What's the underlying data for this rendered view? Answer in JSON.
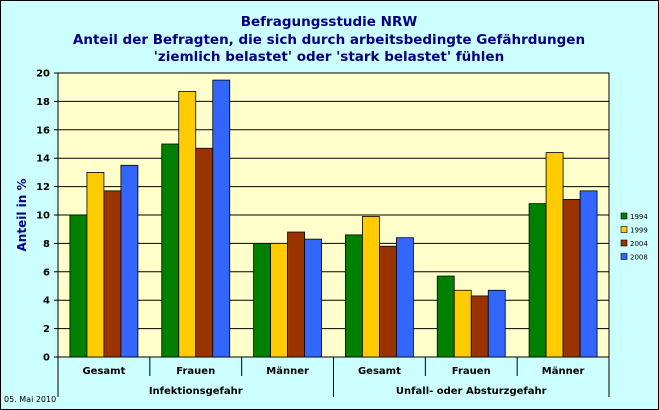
{
  "title_lines": [
    "Befragungsstudie NRW",
    "Anteil der Befragten, die sich durch arbeitsbedingte Gefährdungen",
    "'ziemlich belastet' oder 'stark belastet' fühlen"
  ],
  "footer": "05. Mai 2010",
  "colors": {
    "background": "#ccffff",
    "plot_background": "#ffffcc",
    "title": "#000080",
    "series": [
      "#008000",
      "#ffcc00",
      "#993300",
      "#3366ff"
    ]
  },
  "chart_data": {
    "type": "bar",
    "ylabel": "Anteil in %",
    "ylim": [
      0,
      20
    ],
    "yticks": [
      0,
      2,
      4,
      6,
      8,
      10,
      12,
      14,
      16,
      18,
      20
    ],
    "grid": "horizontal",
    "legend_position": "right",
    "groups": [
      {
        "label": "Infektionsgefahr",
        "categories": [
          "Gesamt",
          "Frauen",
          "Männer"
        ]
      },
      {
        "label": "Unfall- oder Absturzgefahr",
        "categories": [
          "Gesamt",
          "Frauen",
          "Männer"
        ]
      }
    ],
    "categories": [
      "Gesamt",
      "Frauen",
      "Männer",
      "Gesamt",
      "Frauen",
      "Männer"
    ],
    "series": [
      {
        "name": "1994",
        "values": [
          10.0,
          15.0,
          8.0,
          8.6,
          5.7,
          10.8
        ]
      },
      {
        "name": "1999",
        "values": [
          13.0,
          18.7,
          8.0,
          9.9,
          4.7,
          14.4
        ]
      },
      {
        "name": "2004",
        "values": [
          11.7,
          14.7,
          8.8,
          7.8,
          4.3,
          11.1
        ]
      },
      {
        "name": "2008",
        "values": [
          13.5,
          19.5,
          8.3,
          8.4,
          4.7,
          11.7
        ]
      }
    ]
  }
}
